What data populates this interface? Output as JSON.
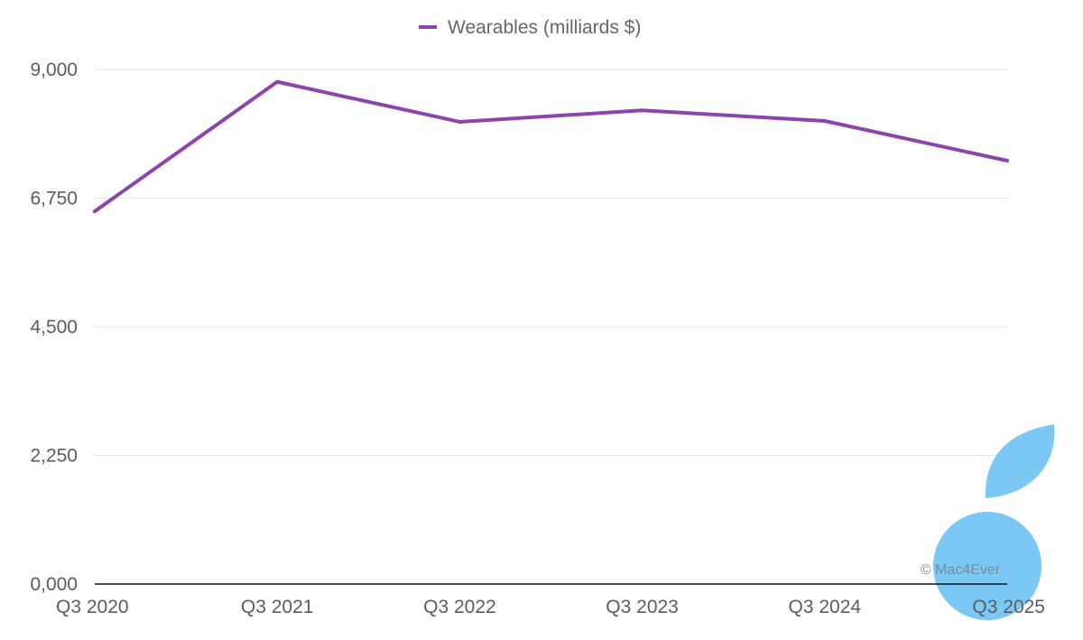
{
  "chart_data": {
    "type": "line",
    "categories": [
      "Q3 2020",
      "Q3 2021",
      "Q3 2022",
      "Q3 2023",
      "Q3 2024",
      "Q3 2025"
    ],
    "series": [
      {
        "name": "Wearables (milliards $)",
        "values": [
          6520,
          8785,
          8085,
          8285,
          8100,
          7405
        ]
      }
    ],
    "ylim": [
      0,
      9000
    ],
    "yticks": [
      "0,000",
      "2,250",
      "4,500",
      "6,750",
      "9,000"
    ],
    "yticks_values": [
      0,
      2250,
      4500,
      6750,
      9000
    ],
    "legend_position": "top-center",
    "grid": true,
    "colors": {
      "line": "#8e44ad",
      "grid": "#e4e4e4",
      "baseline": "#111111",
      "logo": "#7cc8f4"
    }
  },
  "watermark": {
    "text": "© Mac4Ever",
    "logo_icon": "mac4ever-apple-logo-icon"
  }
}
